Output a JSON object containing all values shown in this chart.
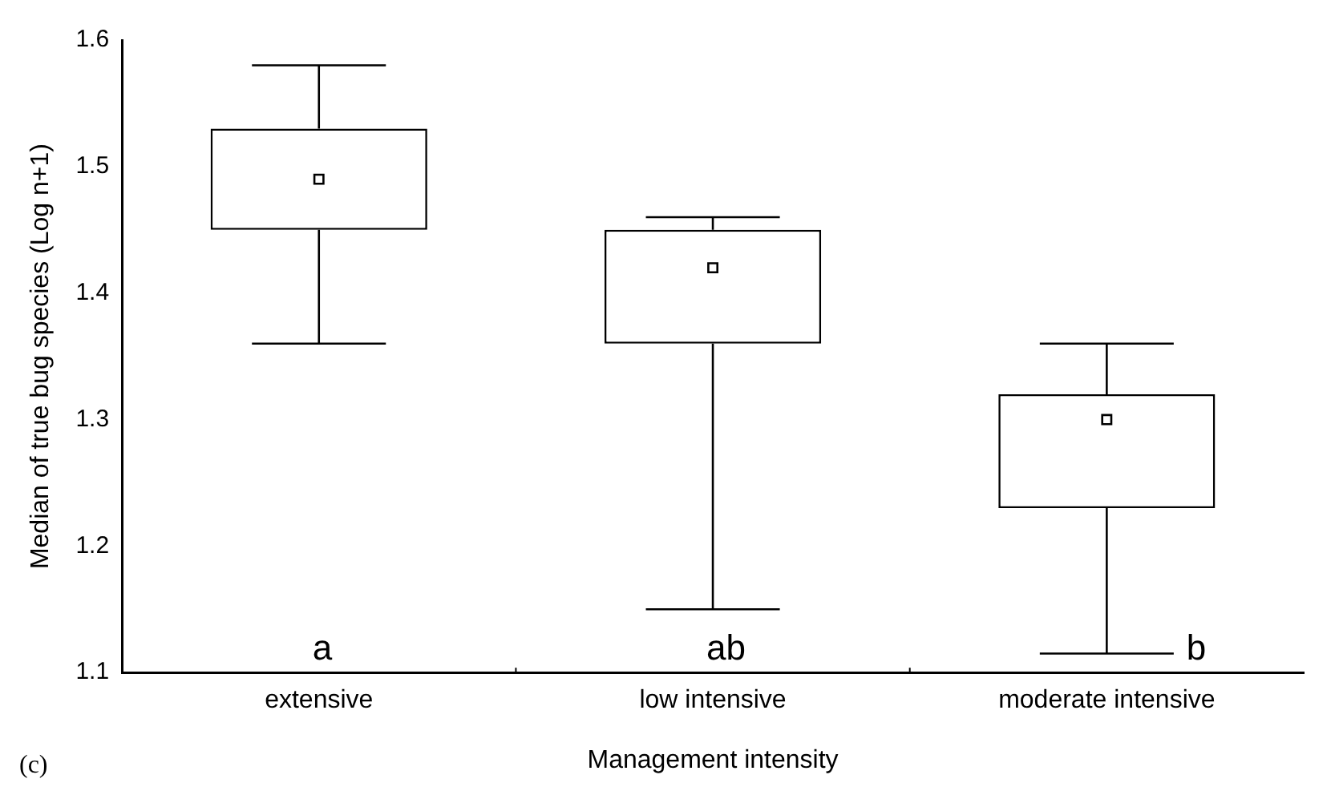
{
  "chart_data": {
    "type": "box",
    "xlabel": "Management intensity",
    "ylabel": "Median of true bug species (Log n+1)",
    "categories": [
      "extensive",
      "low intensive",
      "moderate intensive"
    ],
    "boxes": [
      {
        "low": 1.36,
        "q1": 1.45,
        "median": 1.49,
        "q3": 1.53,
        "high": 1.58
      },
      {
        "low": 1.15,
        "q1": 1.36,
        "median": 1.42,
        "q3": 1.45,
        "high": 1.46
      },
      {
        "low": 1.115,
        "q1": 1.23,
        "median": 1.3,
        "q3": 1.32,
        "high": 1.36
      }
    ],
    "color": "#000000",
    "marker": "square",
    "ylim": [
      1.1,
      1.6
    ],
    "yticks": [
      1.1,
      1.2,
      1.3,
      1.4,
      1.5,
      1.6
    ],
    "grid": false,
    "annotations": [
      "a",
      "ab",
      "b",
      "(c)"
    ]
  }
}
